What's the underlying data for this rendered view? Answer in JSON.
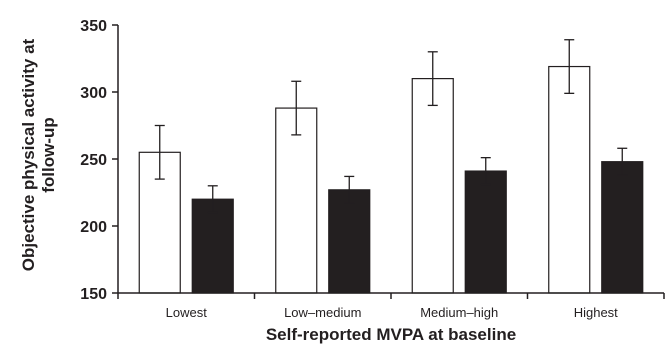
{
  "chart_data": {
    "type": "bar",
    "title": "",
    "xlabel": "Self-reported MVPA at baseline",
    "ylabel": "Objective physical activity at follow-up",
    "ylim": [
      150,
      350
    ],
    "yticks": [
      "150",
      "200",
      "250",
      "300",
      "350"
    ],
    "categories": [
      "Lowest",
      "Low–medium",
      "Medium–high",
      "Highest"
    ],
    "grid": false,
    "legend": "none",
    "series": [
      {
        "fill": "#ffffff",
        "values": [
          255,
          288,
          310,
          319
        ],
        "errors": [
          20,
          20,
          20,
          20
        ]
      },
      {
        "fill": "#231f20",
        "values": [
          220,
          227,
          241,
          248
        ],
        "errors": [
          10,
          10,
          10,
          10
        ]
      }
    ]
  }
}
